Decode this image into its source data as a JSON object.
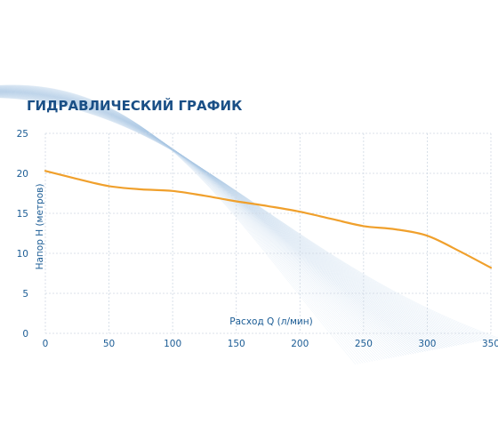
{
  "chart_data": {
    "type": "line",
    "title": "ГИДРАВЛИЧЕСКИЙ ГРАФИК",
    "xlabel": "Расход Q (л/мин)",
    "ylabel": "Напор H (метров)",
    "xlim": [
      0,
      350
    ],
    "ylim": [
      0,
      25
    ],
    "xticks": [
      0,
      50,
      100,
      150,
      200,
      250,
      300,
      350
    ],
    "yticks": [
      0,
      5,
      10,
      15,
      20,
      25
    ],
    "grid": true,
    "series": [
      {
        "x": [
          0,
          25,
          50,
          75,
          100,
          125,
          150,
          175,
          200,
          225,
          250,
          275,
          300,
          325,
          350
        ],
        "y": [
          20.3,
          19.3,
          18.4,
          18.0,
          17.8,
          17.2,
          16.5,
          15.9,
          15.2,
          14.3,
          13.4,
          13.0,
          12.2,
          10.3,
          8.2
        ]
      }
    ],
    "colors": {
      "line": "#f0a02c",
      "text": "#1a5b94",
      "title": "#1a4f86",
      "grid": "#cfd8e3"
    }
  }
}
